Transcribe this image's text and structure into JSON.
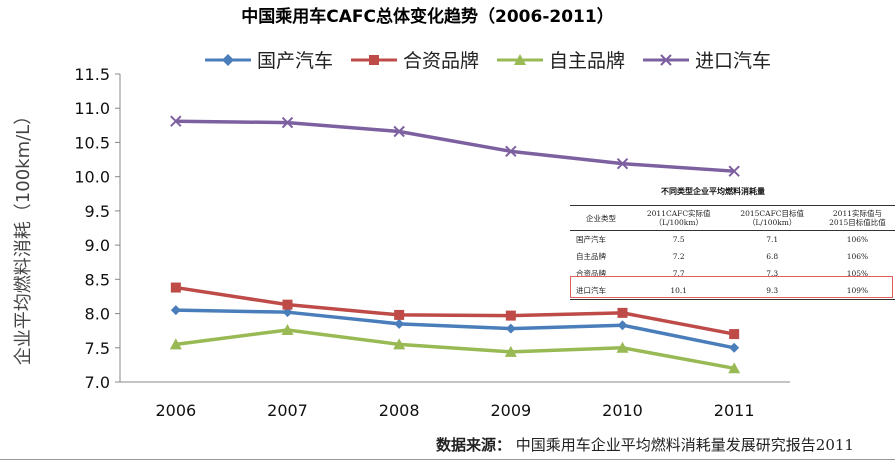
{
  "chart_data": {
    "type": "line",
    "title": "中国乘用车CAFC总体变化趋势（2006-2011）",
    "xlabel": "",
    "ylabel": "企业平均燃料消耗（100km/L）",
    "x": [
      "2006",
      "2007",
      "2008",
      "2009",
      "2010",
      "2011"
    ],
    "ylim": [
      7.0,
      11.5
    ],
    "yticks": [
      "7.0",
      "7.5",
      "8.0",
      "8.5",
      "9.0",
      "9.5",
      "10.0",
      "10.5",
      "11.0",
      "11.5"
    ],
    "legend_position": "top",
    "series": [
      {
        "name": "国产汽车",
        "color": "#4a7ebb",
        "marker": "diamond",
        "values": [
          8.05,
          8.02,
          7.85,
          7.78,
          7.83,
          7.5
        ]
      },
      {
        "name": "合资品牌",
        "color": "#be4b48",
        "marker": "square",
        "values": [
          8.38,
          8.13,
          7.98,
          7.97,
          8.01,
          7.7
        ]
      },
      {
        "name": "自主品牌",
        "color": "#98b954",
        "marker": "triangle",
        "values": [
          7.55,
          7.76,
          7.55,
          7.44,
          7.5,
          7.2
        ]
      },
      {
        "name": "进口汽车",
        "color": "#7d60a0",
        "marker": "x",
        "values": [
          10.81,
          10.79,
          10.66,
          10.37,
          10.19,
          10.08
        ]
      }
    ]
  },
  "inset_table": {
    "title": "不同类型企业平均燃料消耗量",
    "headers": [
      "企业类型",
      "2011CAFC实际值（L/100km）",
      "2015CAFC目标值（L/100km）",
      "2011实际值与2015目标值比值"
    ],
    "rows": [
      [
        "国产汽车",
        "7.5",
        "7.1",
        "106%"
      ],
      [
        "自主品牌",
        "7.2",
        "6.8",
        "106%"
      ],
      [
        "合资品牌",
        "7.7",
        "7.3",
        "105%"
      ],
      [
        "进口汽车",
        "10.1",
        "9.3",
        "109%"
      ]
    ]
  },
  "source": {
    "label": "数据来源：",
    "text": "中国乘用车企业平均燃料消耗量发展研究报告2011"
  },
  "colors": {
    "axis": "#888888"
  }
}
